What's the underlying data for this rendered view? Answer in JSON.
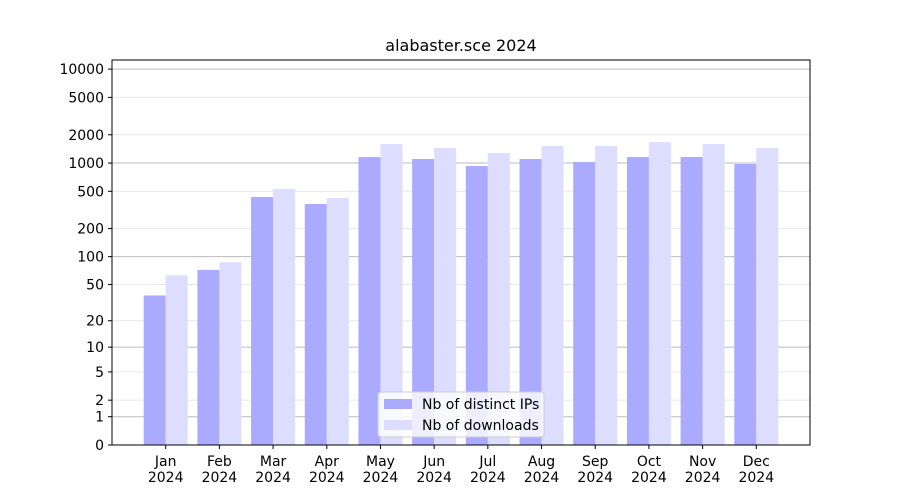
{
  "chart_data": {
    "type": "bar",
    "title": "alabaster.sce 2024",
    "categories": [
      "Jan\n2024",
      "Feb\n2024",
      "Mar\n2024",
      "Apr\n2024",
      "May\n2024",
      "Jun\n2024",
      "Jul\n2024",
      "Aug\n2024",
      "Sep\n2024",
      "Oct\n2024",
      "Nov\n2024",
      "Dec\n2024"
    ],
    "series": [
      {
        "name": "Nb of distinct IPs",
        "color": "#aaaaff",
        "values": [
          38,
          72,
          434,
          366,
          1158,
          1104,
          929,
          1104,
          1025,
          1158,
          1158,
          976
        ]
      },
      {
        "name": "Nb of downloads",
        "color": "#ddddff",
        "values": [
          63,
          87,
          528,
          424,
          1592,
          1444,
          1277,
          1517,
          1517,
          1672,
          1592,
          1444
        ]
      }
    ],
    "yscale": "log1p",
    "ylim": [
      0,
      12500
    ],
    "yticks": [
      0,
      1,
      2,
      5,
      10,
      20,
      50,
      100,
      200,
      500,
      1000,
      2000,
      5000,
      10000
    ],
    "grid": true,
    "legend": "lower center"
  }
}
